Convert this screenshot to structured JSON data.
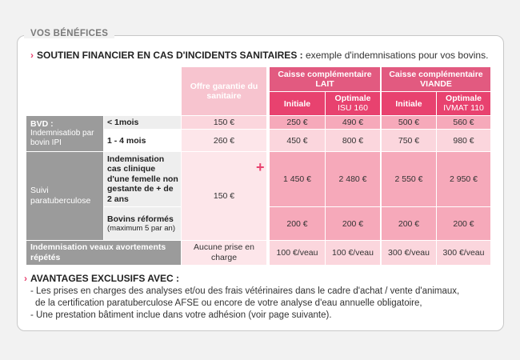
{
  "section": {
    "title": "VOS BÉNÉFICES"
  },
  "subtitle": {
    "bold": "SOUTIEN FINANCIER EN CAS D'INCIDENTS SANITAIRES :",
    "normal": "exemple d'indemnisations pour vos bovins."
  },
  "headers": {
    "offre": "Offre garantie du sanitaire",
    "lait": "Caisse complémentaire LAIT",
    "viande": "Caisse complémentaire VIANDE",
    "initiale": "Initiale",
    "optimale": "Optimale",
    "isu": "ISU 160",
    "ivmat": "IVMAT 110"
  },
  "rows": {
    "bvd": {
      "label1": "BVD :",
      "label2": "Indemnisatiob par bovin IPI"
    },
    "r1": {
      "label": "< 1mois",
      "values": [
        "150 €",
        "250 €",
        "490 €",
        "500 €",
        "560 €"
      ]
    },
    "r2": {
      "label": "1 - 4 mois",
      "values": [
        "260 €",
        "450 €",
        "800 €",
        "750 €",
        "980 €"
      ]
    },
    "suivi": {
      "label": "Suivi paratuberculose",
      "offre": "150 €"
    },
    "r3": {
      "label": "Indemnisation cas clinique d'une femelle non gestante de + de 2 ans",
      "values": [
        "1 450 €",
        "2 480 €",
        "2 550 €",
        "2 950 €"
      ]
    },
    "r4": {
      "label_bold": "Bovins réformés",
      "label_small": "(maximum 5 par an)",
      "values": [
        "200 €",
        "200 €",
        "200 €",
        "200 €"
      ]
    },
    "r5": {
      "label": "Indemnisation veaux avortements répétés",
      "offre": "Aucune prise en charge",
      "values": [
        "100 €/veau",
        "100 €/veau",
        "300 €/veau",
        "300 €/veau"
      ]
    }
  },
  "plus": "+",
  "advantages": {
    "title": "AVANTAGES EXCLUSIFS AVEC :",
    "line1": "- Les prises en charges des analyses et/ou des frais vétérinaires dans le cadre d'achat / vente d'animaux,",
    "line2": "de la certification paratuberculose AFSE ou encore de votre analyse d'eau annuelle obligatoire,",
    "line3": "- Une prestation bâtiment inclue dans votre adhésion (voir page suivante)."
  },
  "colors": {
    "accent": "#e8426f",
    "header_pink": "#e25a80",
    "cell_pink": "#f6a9ba",
    "offre_pink": "#fbd6dd",
    "gray": "#9b9b9b"
  }
}
